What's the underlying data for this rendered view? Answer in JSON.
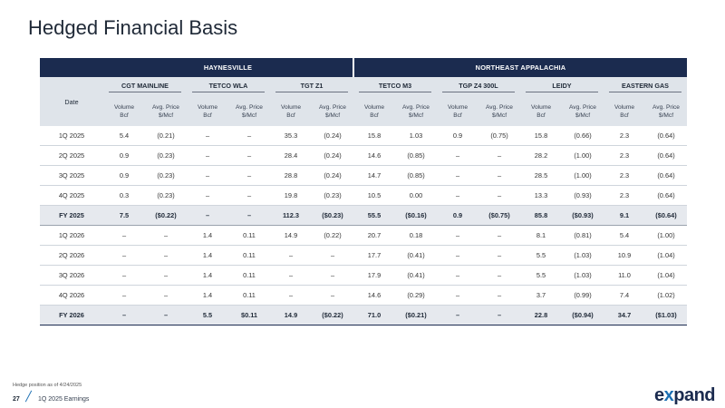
{
  "page": {
    "title": "Hedged Financial Basis",
    "footnote": "Hedge position as of 4/24/2025",
    "page_number": "27",
    "footer_label": "1Q 2025 Earnings",
    "logo_prefix": "e",
    "logo_x": "x",
    "logo_suffix": "pand"
  },
  "table": {
    "regions": [
      {
        "label": "HAYNESVILLE"
      },
      {
        "label": "NORTHEAST APPALACHIA"
      }
    ],
    "date_header": "Date",
    "hubs": [
      "CGT MAINLINE",
      "TETCO WLA",
      "TGT Z1",
      "TETCO M3",
      "TGP Z4 300L",
      "LEIDY",
      "EASTERN GAS"
    ],
    "sub_volume": [
      "Volume",
      "Bcf"
    ],
    "sub_price": [
      "Avg. Price",
      "$/Mcf"
    ],
    "rows": [
      {
        "date": "1Q 2025",
        "values": [
          "5.4",
          "(0.21)",
          "–",
          "–",
          "35.3",
          "(0.24)",
          "15.8",
          "1.03",
          "0.9",
          "(0.75)",
          "15.8",
          "(0.66)",
          "2.3",
          "(0.64)"
        ]
      },
      {
        "date": "2Q 2025",
        "values": [
          "0.9",
          "(0.23)",
          "–",
          "–",
          "28.4",
          "(0.24)",
          "14.6",
          "(0.85)",
          "–",
          "–",
          "28.2",
          "(1.00)",
          "2.3",
          "(0.64)"
        ]
      },
      {
        "date": "3Q 2025",
        "values": [
          "0.9",
          "(0.23)",
          "–",
          "–",
          "28.8",
          "(0.24)",
          "14.7",
          "(0.85)",
          "–",
          "–",
          "28.5",
          "(1.00)",
          "2.3",
          "(0.64)"
        ]
      },
      {
        "date": "4Q 2025",
        "values": [
          "0.3",
          "(0.23)",
          "–",
          "–",
          "19.8",
          "(0.23)",
          "10.5",
          "0.00",
          "–",
          "–",
          "13.3",
          "(0.93)",
          "2.3",
          "(0.64)"
        ]
      },
      {
        "date": "FY 2025",
        "values": [
          "7.5",
          "($0.22)",
          "–",
          "–",
          "112.3",
          "($0.23)",
          "55.5",
          "($0.16)",
          "0.9",
          "($0.75)",
          "85.8",
          "($0.93)",
          "9.1",
          "($0.64)"
        ]
      },
      {
        "date": "1Q 2026",
        "values": [
          "–",
          "–",
          "1.4",
          "0.11",
          "14.9",
          "(0.22)",
          "20.7",
          "0.18",
          "–",
          "–",
          "8.1",
          "(0.81)",
          "5.4",
          "(1.00)"
        ]
      },
      {
        "date": "2Q 2026",
        "values": [
          "–",
          "–",
          "1.4",
          "0.11",
          "–",
          "–",
          "17.7",
          "(0.41)",
          "–",
          "–",
          "5.5",
          "(1.03)",
          "10.9",
          "(1.04)"
        ]
      },
      {
        "date": "3Q 2026",
        "values": [
          "–",
          "–",
          "1.4",
          "0.11",
          "–",
          "–",
          "17.9",
          "(0.41)",
          "–",
          "–",
          "5.5",
          "(1.03)",
          "11.0",
          "(1.04)"
        ]
      },
      {
        "date": "4Q 2026",
        "values": [
          "–",
          "–",
          "1.4",
          "0.11",
          "–",
          "–",
          "14.6",
          "(0.29)",
          "–",
          "–",
          "3.7",
          "(0.99)",
          "7.4",
          "(1.02)"
        ]
      },
      {
        "date": "FY 2026",
        "values": [
          "–",
          "–",
          "5.5",
          "$0.11",
          "14.9",
          "($0.22)",
          "71.0",
          "($0.21)",
          "–",
          "–",
          "22.8",
          "($0.94)",
          "34.7",
          "($1.03)"
        ]
      }
    ]
  },
  "colors": {
    "header_navy": "#1b2b4f",
    "subheader_gray": "#dfe4ea",
    "total_row": "#e6e9ee",
    "accent_blue": "#1b6fb3"
  }
}
